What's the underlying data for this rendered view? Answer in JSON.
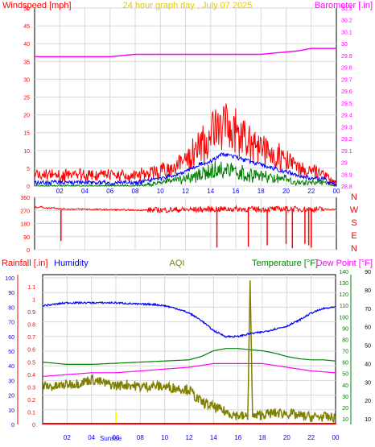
{
  "chart_data": [
    {
      "type": "line",
      "title": "24 hour graph day , July 07 2025",
      "ylabel_left": "Windspeed [mph]",
      "ylabel_right": "Barometer [.in]",
      "ylim_left": [
        0,
        50
      ],
      "ylim_right": [
        28.8,
        30.3
      ],
      "left_ticks": [
        "0",
        "5",
        "10",
        "15",
        "20",
        "25",
        "30",
        "35",
        "40",
        "45",
        "50"
      ],
      "right_ticks": [
        "28.8",
        "28.9",
        "29",
        "29.1",
        "29.2",
        "29.3",
        "29.4",
        "29.5",
        "29.6",
        "29.7",
        "29.8",
        "29.9",
        "30",
        "30.1",
        "30.2",
        "30.3"
      ],
      "x_ticks": [
        "02",
        "04",
        "06",
        "08",
        "10",
        "12",
        "14",
        "16",
        "18",
        "20",
        "22",
        "00"
      ],
      "colors": {
        "gust": "#ff0000",
        "avg": "#0000ff",
        "low": "#008000",
        "barometer": "#ff00ff",
        "grid": "#d8d8d8"
      },
      "x_hours": [
        0,
        2,
        4,
        6,
        8,
        10,
        12,
        13,
        14,
        15,
        16,
        17,
        18,
        19,
        20,
        21,
        22,
        23,
        24
      ],
      "series": [
        {
          "values": [
            3,
            3,
            3,
            3,
            3,
            4,
            7,
            10,
            14,
            17,
            15,
            13,
            11,
            9,
            7,
            5,
            4,
            3,
            1
          ]
        },
        {
          "values": [
            1,
            1,
            1,
            1,
            1,
            2,
            4,
            6,
            7,
            9,
            8,
            7,
            6,
            5,
            4,
            3,
            2,
            2,
            0
          ]
        },
        {
          "values": [
            0,
            0,
            0,
            0,
            0,
            1,
            2,
            3,
            4,
            5,
            4,
            3,
            3,
            2,
            2,
            1,
            1,
            1,
            0
          ]
        },
        {
          "values": [
            29.89,
            29.89,
            29.89,
            29.89,
            29.91,
            29.91,
            29.91,
            29.91,
            29.91,
            29.91,
            29.91,
            29.91,
            29.91,
            29.92,
            29.93,
            29.94,
            29.96,
            29.96,
            29.96
          ]
        }
      ]
    },
    {
      "type": "line",
      "ylim": [
        0,
        360
      ],
      "left_ticks": [
        "0",
        "90",
        "180",
        "270",
        "360"
      ],
      "right_labels": [
        "N",
        "W",
        "S",
        "E",
        "N"
      ],
      "colors": {
        "direction": "#ff0000"
      },
      "x_hours": [
        0,
        0.5,
        1,
        1.5,
        2,
        4,
        6,
        8,
        10,
        12,
        14,
        16,
        18,
        20,
        22,
        23,
        24
      ],
      "values": [
        290,
        295,
        285,
        290,
        280,
        278,
        275,
        272,
        273,
        275,
        278,
        280,
        278,
        280,
        278,
        278,
        278
      ],
      "dips": [
        [
          2.1,
          60
        ],
        [
          14.5,
          15
        ],
        [
          17.0,
          20
        ],
        [
          18.5,
          30
        ],
        [
          20.0,
          40
        ],
        [
          20.5,
          10
        ],
        [
          21.5,
          40
        ],
        [
          21.8,
          30
        ],
        [
          22.0,
          15
        ]
      ]
    },
    {
      "type": "line",
      "labels": {
        "rainfall": "Rainfall [.in]",
        "humidity": "Humidity",
        "aqi": "AQI",
        "temperature": "Temperature [°F]",
        "dewpoint": "Dew Point [°F]",
        "sunrise": "Sunrise"
      },
      "humidity_ticks": [
        "0",
        "10",
        "20",
        "30",
        "40",
        "50",
        "60",
        "70",
        "80",
        "90",
        "100"
      ],
      "rain_ticks": [
        "0",
        "0.1",
        "0.2",
        "0.3",
        "0.4",
        "0.5",
        "0.6",
        "0.7",
        "0.8",
        "0.9",
        "1",
        "1.1"
      ],
      "temp_ticks": [
        "10",
        "20",
        "30",
        "40",
        "50",
        "60",
        "70",
        "80",
        "90",
        "100",
        "110",
        "120",
        "130",
        "140"
      ],
      "dew_ticks": [
        "10",
        "20",
        "30",
        "40",
        "50",
        "60",
        "70",
        "80",
        "90"
      ],
      "x_ticks": [
        "02",
        "04",
        "06",
        "08",
        "10",
        "12",
        "14",
        "16",
        "18",
        "20",
        "22",
        "00"
      ],
      "colors": {
        "rainfall": "#ff0000",
        "humidity": "#0000ff",
        "aqi": "#808000",
        "temperature": "#008000",
        "dewpoint": "#ff00ff",
        "sunrise": "#ffff00",
        "grid": "#d8d8d8"
      },
      "sunrise_hour": 6.0,
      "sunset_hour": 16.9,
      "humidity": {
        "x": [
          0,
          2,
          4,
          6,
          8,
          9,
          10,
          11,
          12,
          13,
          14,
          15,
          16,
          17,
          18,
          19,
          20,
          21,
          22,
          23,
          24
        ],
        "values": [
          81,
          83,
          83,
          83,
          82,
          82,
          81,
          79,
          76,
          71,
          64,
          60,
          60,
          62,
          63,
          65,
          67,
          71,
          76,
          79,
          80
        ]
      },
      "dewpoint": {
        "x": [
          0,
          2,
          4,
          6,
          8,
          10,
          12,
          13,
          14,
          16,
          18,
          20,
          22,
          24
        ],
        "values": [
          33,
          34,
          35,
          35,
          36,
          37,
          38,
          39,
          40,
          40,
          40,
          38,
          36,
          35
        ]
      },
      "temperature": {
        "x": [
          0,
          2,
          4,
          6,
          8,
          10,
          12,
          13,
          14,
          15,
          16,
          17,
          18,
          19,
          20,
          21,
          22,
          23,
          24
        ],
        "values": [
          60,
          58,
          58,
          59,
          60,
          61,
          62,
          65,
          70,
          72,
          72,
          71,
          70,
          68,
          65,
          63,
          62,
          62,
          61
        ]
      },
      "aqi": {
        "x": [
          0,
          1,
          2,
          3,
          4,
          5,
          6,
          7,
          8,
          9,
          10,
          11,
          12,
          12.5,
          13,
          14,
          15,
          16,
          16.8,
          17,
          17.2,
          18,
          19,
          20,
          21,
          22,
          23,
          24
        ],
        "values": [
          0.31,
          0.3,
          0.32,
          0.33,
          0.36,
          0.33,
          0.31,
          0.32,
          0.3,
          0.31,
          0.3,
          0.29,
          0.28,
          0.22,
          0.18,
          0.14,
          0.1,
          0.07,
          0.06,
          1.15,
          0.06,
          0.08,
          0.09,
          0.09,
          0.07,
          0.06,
          0.06,
          0.05
        ]
      },
      "rainfall": {
        "x": [
          0,
          24
        ],
        "values": [
          0,
          0
        ]
      }
    }
  ]
}
